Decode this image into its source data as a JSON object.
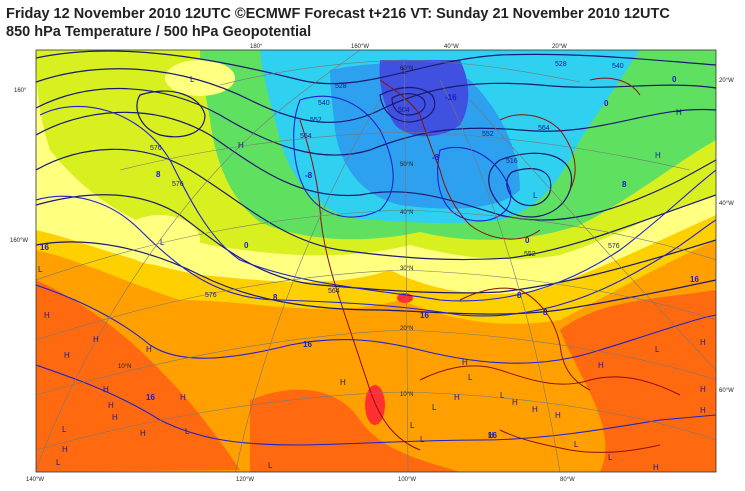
{
  "header": {
    "line1": "Friday 12 November 2010 12UTC ©ECMWF Forecast t+216 VT: Sunday 21 November 2010 12UTC",
    "line2": "850 hPa Temperature / 500 hPa Geopotential"
  },
  "colors": {
    "t_below_minus16": "#4050e0",
    "t_minus8": "#2ea0f0",
    "t_minus4": "#30d0f0",
    "t_0": "#60e060",
    "t_4": "#d8f020",
    "t_8": "#ffff80",
    "t_12": "#ffd000",
    "t_16": "#ffa000",
    "t_20": "#ff6a10",
    "t_24": "#ff3030",
    "geopotential_contour": "#1a1a70",
    "temperature_contour": "#2020d0",
    "coastline": "#8a1010"
  },
  "labels": {
    "lon_bottom": [
      "140°W",
      "120°W",
      "100°W",
      "80°W"
    ],
    "lon_top": [
      "180°",
      "160°W",
      "40°W",
      "20°W"
    ],
    "lat_left": [
      "160°",
      "160°W"
    ],
    "lat_right": [
      "20°W",
      "40°W",
      "60°W"
    ],
    "lat_inner": [
      "60°N",
      "50°N",
      "40°N",
      "30°N",
      "20°N",
      "10°N",
      "10°N"
    ],
    "geopotential": [
      "528",
      "540",
      "552",
      "564",
      "576",
      "552",
      "564",
      "576",
      "516",
      "504",
      "528",
      "540",
      "576",
      "564",
      "552",
      "576"
    ],
    "temperature": [
      "0",
      "8",
      "8",
      "16",
      "16",
      "16",
      "16",
      "16",
      "-8",
      "0",
      "8",
      "16",
      "8",
      "0",
      "8",
      "-16",
      "-8",
      "0"
    ],
    "pressure_centers": [
      "L",
      "H",
      "L",
      "L",
      "L",
      "H",
      "H",
      "H",
      "H",
      "H",
      "H",
      "L",
      "H",
      "H",
      "L",
      "L",
      "H",
      "L",
      "H",
      "L",
      "L",
      "L",
      "H",
      "H",
      "H",
      "H",
      "H",
      "L",
      "H",
      "H",
      "H",
      "H",
      "L",
      "H",
      "L",
      "L",
      "H",
      "L",
      "H",
      "H",
      "H",
      "L"
    ]
  }
}
